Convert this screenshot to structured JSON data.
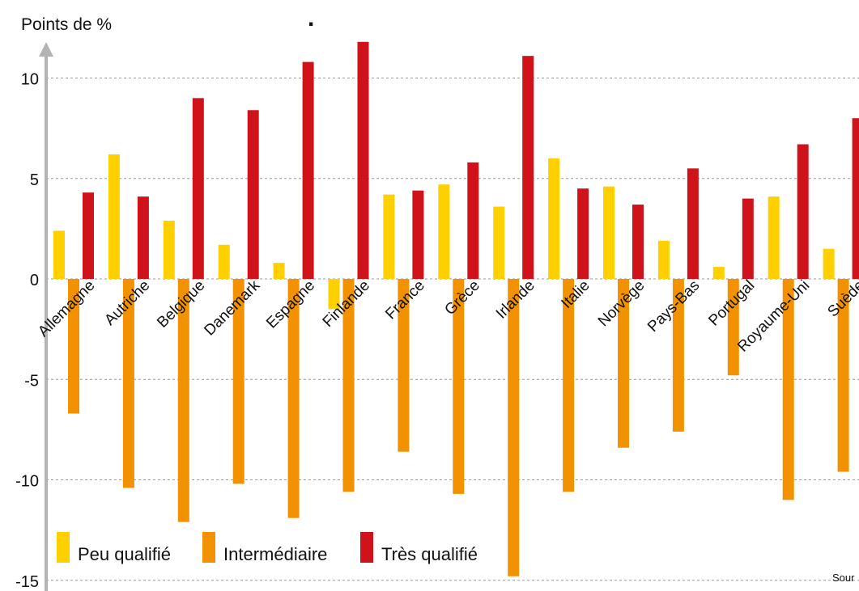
{
  "chart_data": {
    "type": "bar",
    "ylabel": "Points de %",
    "ylim": [
      -15,
      12
    ],
    "yticks": [
      10,
      5,
      0,
      -5,
      -10,
      -15
    ],
    "grid": true,
    "legend_position": "bottom-left",
    "categories": [
      "Allemagne",
      "Autriche",
      "Belgique",
      "Danemark",
      "Espagne",
      "Finlande",
      "France",
      "Grèce",
      "Irlande",
      "Italie",
      "Norvège",
      "Pays-Bas",
      "Portugal",
      "Royaume-Uni",
      "Suède"
    ],
    "series": [
      {
        "name": "Peu qualifié",
        "color": "#FFD000",
        "values": [
          2.4,
          6.2,
          2.9,
          1.7,
          0.8,
          -1.5,
          4.2,
          4.7,
          3.6,
          6.0,
          4.6,
          1.9,
          0.6,
          4.1,
          1.5
        ]
      },
      {
        "name": "Intermédiaire",
        "color": "#F39200",
        "values": [
          -6.7,
          -10.4,
          -12.1,
          -10.2,
          -11.9,
          -10.6,
          -8.6,
          -10.7,
          -14.8,
          -10.6,
          -8.4,
          -7.6,
          -4.8,
          -11.0,
          -9.6
        ]
      },
      {
        "name": "Très qualifié",
        "color": "#D0121B",
        "values": [
          4.3,
          4.1,
          9.0,
          8.4,
          10.8,
          11.8,
          4.4,
          5.8,
          11.1,
          4.5,
          3.7,
          5.5,
          4.0,
          6.7,
          8.0
        ]
      }
    ]
  },
  "source_text": "Sour",
  "top_mark": "."
}
